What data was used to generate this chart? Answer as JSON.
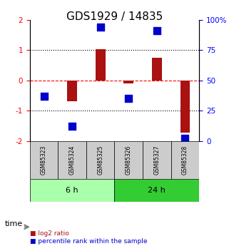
{
  "title": "GDS1929 / 14835",
  "samples": [
    "GSM85323",
    "GSM85324",
    "GSM85325",
    "GSM85326",
    "GSM85327",
    "GSM85328"
  ],
  "log2_ratio": [
    0.0,
    -0.7,
    1.02,
    -0.1,
    0.75,
    -1.72
  ],
  "percentile_rank": [
    37,
    12,
    94,
    35,
    91,
    2
  ],
  "groups": [
    {
      "label": "6 h",
      "samples": [
        0,
        1,
        2
      ],
      "color": "#aaffaa"
    },
    {
      "label": "24 h",
      "samples": [
        3,
        4,
        5
      ],
      "color": "#33cc33"
    }
  ],
  "bar_color": "#aa1111",
  "dot_color": "#0000cc",
  "left_ylim": [
    -2,
    2
  ],
  "right_ylim": [
    0,
    100
  ],
  "left_yticks": [
    -2,
    -1,
    0,
    1,
    2
  ],
  "right_yticks": [
    0,
    25,
    50,
    75,
    100
  ],
  "left_yticklabels": [
    "-2",
    "-1",
    "0",
    "1",
    "2"
  ],
  "right_yticklabels": [
    "0",
    "25",
    "50",
    "75",
    "100%"
  ],
  "dotted_lines": [
    -1,
    0,
    1
  ],
  "zero_line_style": "dashed",
  "bg_color": "#ffffff",
  "plot_bg": "#ffffff",
  "bar_width": 0.35,
  "dot_size": 60,
  "title_fontsize": 11,
  "tick_fontsize": 7.5,
  "label_fontsize": 8,
  "legend_items": [
    {
      "label": "log2 ratio",
      "color": "#aa1111"
    },
    {
      "label": "percentile rank within the sample",
      "color": "#0000cc"
    }
  ]
}
